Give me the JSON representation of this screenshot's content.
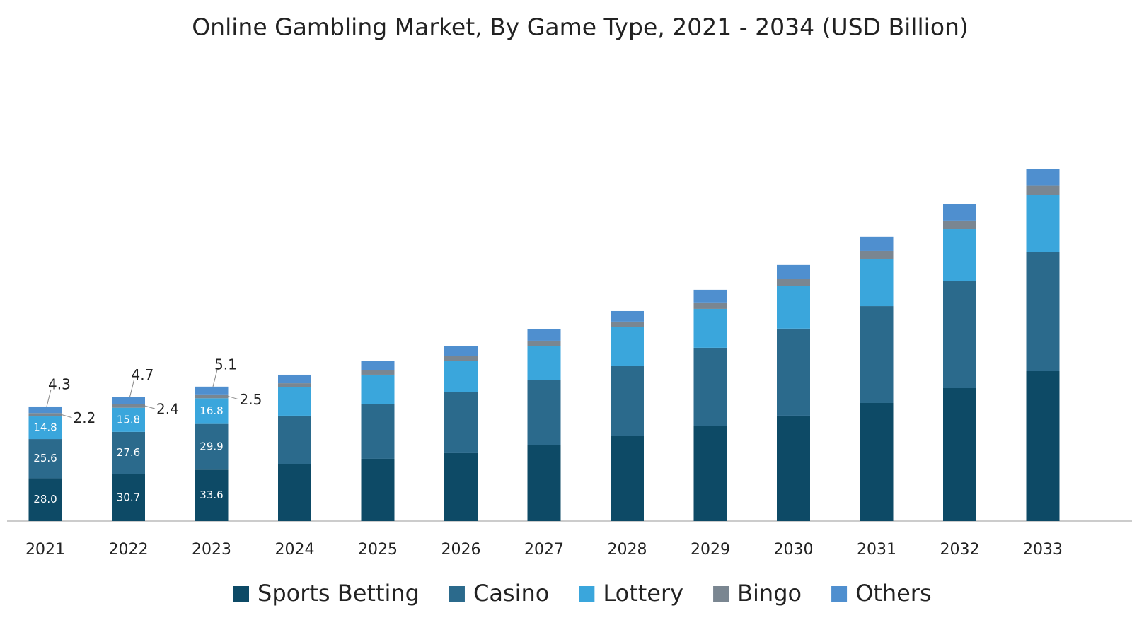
{
  "chart_data": {
    "type": "stacked_bar",
    "title": "Online Gambling Market, By Game Type, 2021 - 2034 (USD Billion)",
    "categories": [
      "2021",
      "2022",
      "2023",
      "2024",
      "2025",
      "2026",
      "2027",
      "2028",
      "2029",
      "2030",
      "2031",
      "2032",
      "2033"
    ],
    "series": [
      {
        "name": "Sports Betting",
        "color": "#0d4a66",
        "values": [
          28.0,
          30.7,
          33.6,
          37.0,
          40.7,
          44.4,
          49.9,
          55.5,
          62.0,
          68.9,
          77.2,
          86.9,
          98.0
        ],
        "value_labels": [
          "28.0",
          "30.7",
          "33.6",
          null,
          null,
          null,
          null,
          null,
          null,
          null,
          null,
          null,
          null
        ]
      },
      {
        "name": "Casino",
        "color": "#2b6a8c",
        "values": [
          25.6,
          27.6,
          29.9,
          31.9,
          35.6,
          39.8,
          42.1,
          46.2,
          51.3,
          56.9,
          63.3,
          69.8,
          77.7
        ],
        "value_labels": [
          "25.6",
          "27.6",
          "29.9",
          null,
          null,
          null,
          null,
          null,
          null,
          null,
          null,
          null,
          null
        ]
      },
      {
        "name": "Lottery",
        "color": "#3aa6dc",
        "values": [
          14.8,
          15.8,
          16.8,
          18.5,
          19.4,
          20.7,
          22.5,
          25.0,
          25.4,
          27.7,
          31.0,
          34.2,
          37.4
        ],
        "value_labels": [
          "14.8",
          "15.8",
          "16.8",
          null,
          null,
          null,
          null,
          null,
          null,
          null,
          null,
          null,
          null
        ]
      },
      {
        "name": "Bingo",
        "color": "#7a8691",
        "values": [
          2.2,
          2.4,
          2.5,
          2.7,
          2.9,
          3.1,
          3.4,
          3.7,
          4.2,
          4.6,
          5.1,
          5.6,
          6.2
        ],
        "value_labels": [
          "2.2",
          "2.4",
          "2.5",
          null,
          null,
          null,
          null,
          null,
          null,
          null,
          null,
          null,
          null
        ]
      },
      {
        "name": "Others",
        "color": "#4f8fcf",
        "values": [
          4.3,
          4.7,
          5.1,
          5.6,
          5.9,
          6.2,
          7.4,
          6.9,
          8.3,
          9.3,
          9.3,
          10.6,
          10.9
        ],
        "value_labels": [
          "4.3",
          "4.7",
          "5.1",
          null,
          null,
          null,
          null,
          null,
          null,
          null,
          null,
          null,
          null
        ]
      }
    ],
    "legend": "bottom"
  }
}
